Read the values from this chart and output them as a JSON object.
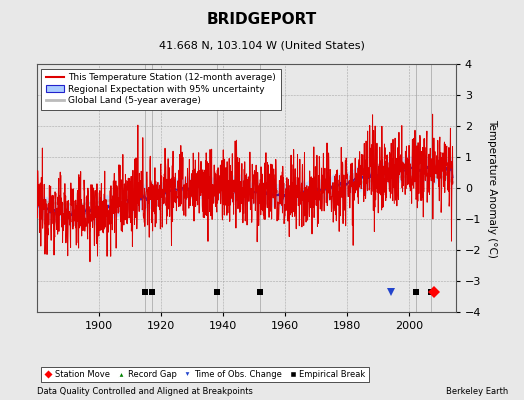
{
  "title": "BRIDGEPORT",
  "subtitle": "41.668 N, 103.104 W (United States)",
  "xlabel_note": "Data Quality Controlled and Aligned at Breakpoints",
  "credit": "Berkeley Earth",
  "year_start": 1880,
  "year_end": 2014,
  "ylim": [
    -4,
    4
  ],
  "yticks": [
    -4,
    -3,
    -2,
    -1,
    0,
    1,
    2,
    3,
    4
  ],
  "xticks": [
    1900,
    1920,
    1940,
    1960,
    1980,
    2000
  ],
  "ylabel": "Temperature Anomaly (°C)",
  "bg_color": "#e8e8e8",
  "plot_bg_color": "#e8e8e8",
  "station_moves": [
    2008
  ],
  "time_of_obs_changes": [
    1994
  ],
  "empirical_breaks": [
    1915,
    1917,
    1938,
    1952,
    2002,
    2007
  ],
  "record_gaps": [],
  "legend_labels": [
    "This Temperature Station (12-month average)",
    "Regional Expectation with 95% uncertainty",
    "Global Land (5-year average)"
  ]
}
